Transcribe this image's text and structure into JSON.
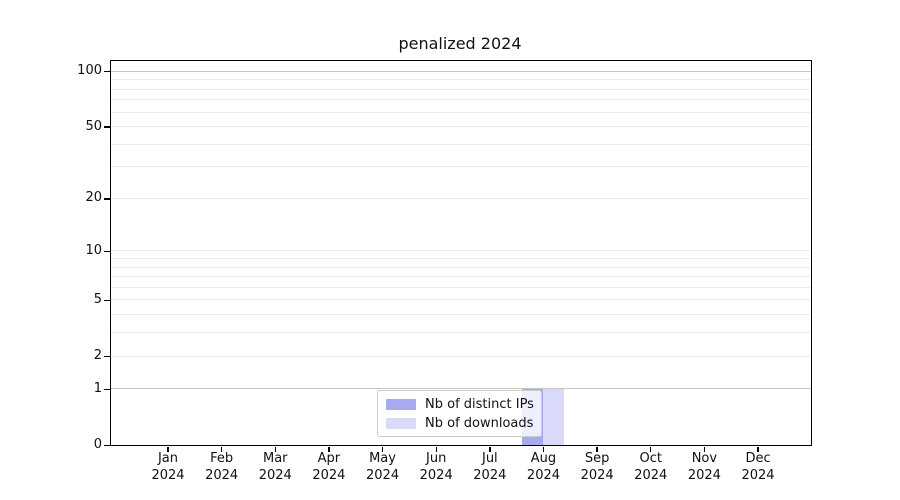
{
  "chart_data": {
    "type": "bar",
    "title": "penalized 2024",
    "categories": [
      "Jan 2024",
      "Feb 2024",
      "Mar 2024",
      "Apr 2024",
      "May 2024",
      "Jun 2024",
      "Jul 2024",
      "Aug 2024",
      "Sep 2024",
      "Oct 2024",
      "Nov 2024",
      "Dec 2024"
    ],
    "series": [
      {
        "name": "Nb of distinct IPs",
        "color": "#a9a9ee",
        "values": [
          0,
          0,
          0,
          0,
          0,
          0,
          0,
          1,
          0,
          0,
          0,
          0
        ]
      },
      {
        "name": "Nb of downloads",
        "color": "#d9d9f9",
        "values": [
          0,
          0,
          0,
          0,
          0,
          0,
          0,
          1,
          0,
          0,
          0,
          0
        ]
      }
    ],
    "xlabel": "",
    "ylabel": "",
    "yscale": "log1p",
    "ylim": [
      0,
      100
    ],
    "yticks": [
      0,
      1,
      2,
      5,
      10,
      20,
      50,
      100
    ],
    "minor_gridline_values": [
      2,
      3,
      4,
      5,
      6,
      7,
      8,
      9,
      10,
      20,
      30,
      40,
      50,
      60,
      70,
      80,
      90
    ],
    "emphasized_gridline_values": [
      1,
      100
    ],
    "grid": true,
    "legend_position": "lower center",
    "colors": {
      "grid_minor": "#ececec",
      "grid_emphasis": "#c6c6c6",
      "axis": "#000000",
      "text": "#111111",
      "legend_border": "#cccccc",
      "background": "#ffffff"
    }
  }
}
